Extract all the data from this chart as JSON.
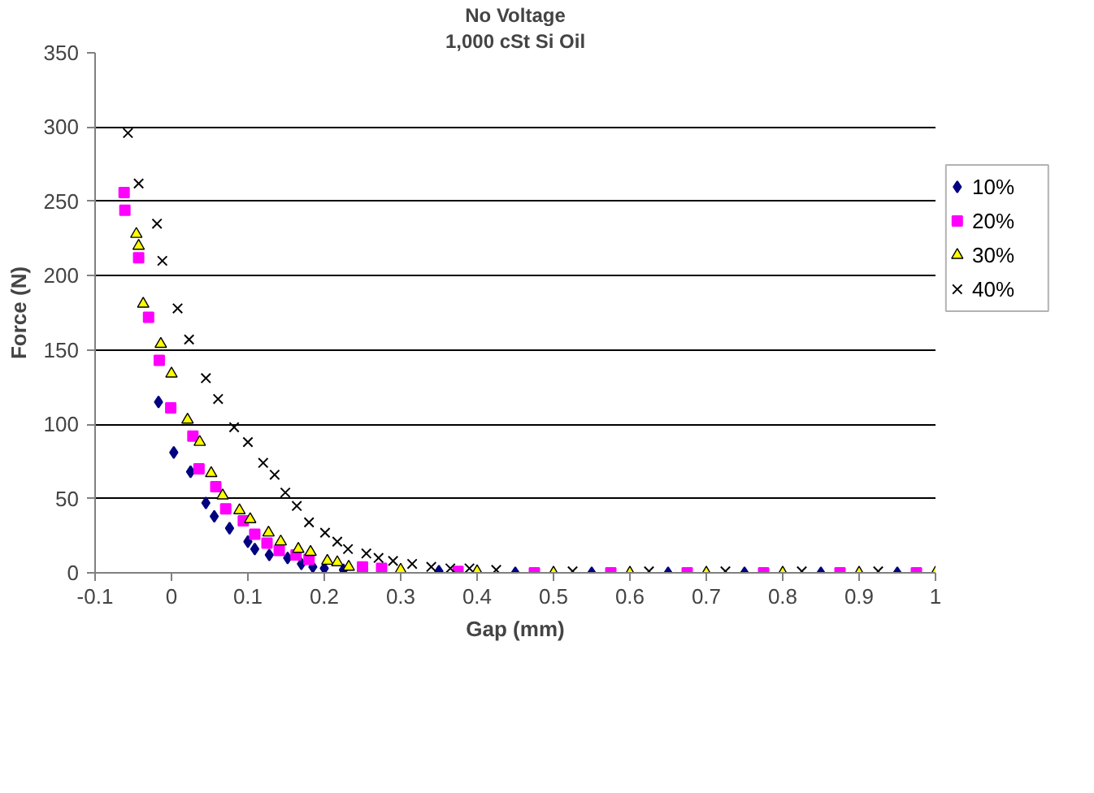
{
  "chart_data": {
    "type": "scatter",
    "title": "No Voltage",
    "subtitle": "1,000 cSt Si Oil",
    "xlabel": "Gap (mm)",
    "ylabel": "Force (N)",
    "xlim": [
      -0.1,
      1
    ],
    "ylim": [
      0,
      350
    ],
    "xticks": [
      -0.1,
      0,
      0.1,
      0.2,
      0.3,
      0.4,
      0.5,
      0.6,
      0.7,
      0.8,
      0.9,
      1
    ],
    "yticks": [
      0,
      50,
      100,
      150,
      200,
      250,
      300,
      350
    ],
    "grid": "y",
    "legend": "right",
    "series": [
      {
        "name": "10%",
        "color": "#000080",
        "marker": "diamond",
        "x": [
          -0.017,
          0.003,
          0.025,
          0.045,
          0.056,
          0.076,
          0.1,
          0.109,
          0.128,
          0.152,
          0.17,
          0.185,
          0.2,
          0.225,
          0.35,
          0.45,
          0.55,
          0.65,
          0.75,
          0.85,
          0.95
        ],
        "values": [
          115,
          81,
          68,
          47,
          38,
          30,
          21,
          16,
          12,
          10,
          6,
          4,
          3,
          2,
          1,
          0,
          0,
          0,
          0,
          0,
          0
        ]
      },
      {
        "name": "20%",
        "color": "#ff00ff",
        "marker": "square",
        "x": [
          -0.062,
          -0.061,
          -0.043,
          -0.03,
          -0.016,
          -0.001,
          0.028,
          0.036,
          0.058,
          0.071,
          0.094,
          0.109,
          0.125,
          0.141,
          0.163,
          0.18,
          0.21,
          0.25,
          0.275,
          0.375,
          0.475,
          0.575,
          0.675,
          0.775,
          0.875,
          0.975
        ],
        "values": [
          256,
          244,
          212,
          172,
          143,
          111,
          92,
          70,
          58,
          43,
          35,
          26,
          20,
          15,
          12,
          9,
          null,
          4,
          3,
          1,
          0,
          0,
          0,
          0,
          0,
          0
        ]
      },
      {
        "name": "30%",
        "color": "#ffff00",
        "marker": "triangle",
        "x": [
          -0.046,
          -0.043,
          -0.037,
          -0.014,
          0.0,
          0.021,
          0.037,
          0.052,
          0.067,
          0.089,
          0.103,
          0.127,
          0.143,
          0.166,
          0.182,
          0.204,
          0.217,
          0.232,
          0.3,
          0.4,
          0.5,
          0.6,
          0.7,
          0.8,
          0.9,
          1.0
        ],
        "values": [
          228,
          220,
          181,
          154,
          134,
          103,
          88,
          67,
          52,
          42,
          36,
          27,
          21,
          16,
          14,
          8,
          7,
          4,
          2,
          1,
          0,
          0,
          0,
          0,
          0,
          0
        ]
      },
      {
        "name": "40%",
        "color": "#000000",
        "marker": "x",
        "x": [
          -0.057,
          -0.043,
          -0.019,
          -0.012,
          0.008,
          0.023,
          0.045,
          0.061,
          0.082,
          0.1,
          0.12,
          0.135,
          0.149,
          0.164,
          0.18,
          0.201,
          0.217,
          0.231,
          0.255,
          0.271,
          0.29,
          0.315,
          0.34,
          0.365,
          0.39,
          0.425,
          0.525,
          0.625,
          0.725,
          0.825,
          0.925
        ],
        "values": [
          296,
          262,
          235,
          210,
          178,
          157,
          131,
          117,
          98,
          88,
          74,
          66,
          54,
          45,
          34,
          27,
          21,
          16,
          13,
          10,
          8,
          6,
          4,
          3,
          3,
          2,
          1,
          1,
          1,
          1,
          1
        ]
      }
    ]
  }
}
